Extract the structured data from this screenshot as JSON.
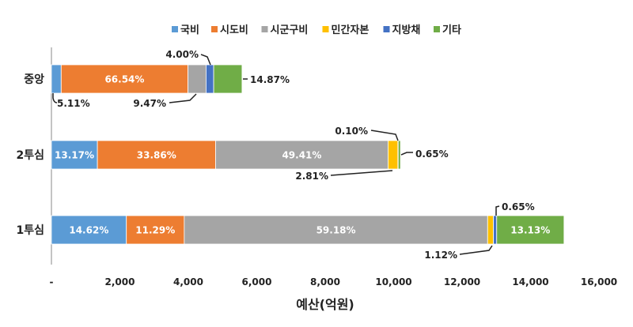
{
  "chart_data": {
    "type": "bar",
    "orientation": "horizontal-stacked",
    "title": "",
    "xlabel": "예산(억원)",
    "ylabel": "",
    "xlim": [
      0,
      16000
    ],
    "x_ticks": [
      "-",
      "2,000",
      "4,000",
      "6,000",
      "8,000",
      "10,000",
      "12,000",
      "14,000",
      "16,000"
    ],
    "legend_placement": "top",
    "categories": [
      "중앙",
      "2투심",
      "1투심"
    ],
    "totals_estimated": [
      5570,
      10200,
      14980
    ],
    "series": [
      {
        "name": "국비",
        "color": "#5B9BD5",
        "percents": [
          5.11,
          13.17,
          14.62
        ],
        "labels": [
          "5.11%",
          "13.17%",
          "14.62%"
        ]
      },
      {
        "name": "시도비",
        "color": "#ED7D31",
        "percents": [
          66.54,
          33.86,
          11.29
        ],
        "labels": [
          "66.54%",
          "33.86%",
          "11.29%"
        ]
      },
      {
        "name": "시군구비",
        "color": "#A5A5A5",
        "percents": [
          9.47,
          49.41,
          59.18
        ],
        "labels": [
          "9.47%",
          "49.41%",
          "59.18%"
        ]
      },
      {
        "name": "민간자본",
        "color": "#FFC000",
        "percents": [
          0,
          2.81,
          1.12
        ],
        "labels": [
          "",
          "2.81%",
          "1.12%"
        ]
      },
      {
        "name": "지방채",
        "color": "#4472C4",
        "percents": [
          4.0,
          0.1,
          0.65
        ],
        "labels": [
          "4.00%",
          "0.10%",
          "0.65%"
        ]
      },
      {
        "name": "기타",
        "color": "#70AD47",
        "percents": [
          14.87,
          0.65,
          13.13
        ],
        "labels": [
          "14.87%",
          "0.65%",
          "13.13%"
        ]
      }
    ]
  }
}
